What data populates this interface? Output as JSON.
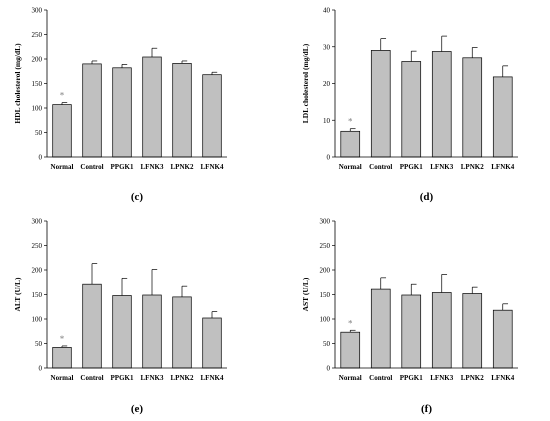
{
  "chart_data": [
    {
      "type": "bar",
      "panel": "(c)",
      "ylabel": "HDL cholesterol (mg/dL)",
      "xlabel": "",
      "ylim": [
        0,
        300
      ],
      "yticks": [
        0,
        50,
        100,
        150,
        200,
        250,
        300
      ],
      "categories": [
        "Normal",
        "Control",
        "PPGK1",
        "LFNK3",
        "LPNK2",
        "LFNK4"
      ],
      "values": [
        107,
        190,
        182,
        204,
        191,
        168
      ],
      "errors": [
        4,
        6,
        7,
        18,
        5,
        5
      ],
      "annotations": [
        {
          "category": "Normal",
          "text": "*"
        }
      ],
      "bar_color": "#c0c0c0",
      "grid": false
    },
    {
      "type": "bar",
      "panel": "(d)",
      "ylabel": "LDL cholesterol (mg/dL)",
      "xlabel": "",
      "ylim": [
        0,
        40
      ],
      "yticks": [
        0,
        10,
        20,
        30,
        40
      ],
      "categories": [
        "Normal",
        "Control",
        "PPGK1",
        "LFNK3",
        "LPNK2",
        "LFNK4"
      ],
      "values": [
        7,
        29,
        26,
        28.7,
        27,
        21.8
      ],
      "errors": [
        0.7,
        3.2,
        2.8,
        4.2,
        2.8,
        3
      ],
      "annotations": [
        {
          "category": "Normal",
          "text": "*"
        }
      ],
      "bar_color": "#c0c0c0",
      "grid": false
    },
    {
      "type": "bar",
      "panel": "(e)",
      "ylabel": "ALT (U/L)",
      "xlabel": "",
      "ylim": [
        0,
        300
      ],
      "yticks": [
        0,
        50,
        100,
        150,
        200,
        250,
        300
      ],
      "categories": [
        "Normal",
        "Control",
        "PPGK1",
        "LFNK3",
        "LPNK2",
        "LFNK4"
      ],
      "values": [
        42,
        171,
        148,
        149,
        145,
        102
      ],
      "errors": [
        3,
        42,
        35,
        52,
        22,
        13
      ],
      "annotations": [
        {
          "category": "Normal",
          "text": "*"
        }
      ],
      "bar_color": "#c0c0c0",
      "grid": false
    },
    {
      "type": "bar",
      "panel": "(f)",
      "ylabel": "AST (U/L)",
      "xlabel": "",
      "ylim": [
        0,
        300
      ],
      "yticks": [
        0,
        50,
        100,
        150,
        200,
        250,
        300
      ],
      "categories": [
        "Normal",
        "Control",
        "PPGK1",
        "LFNK3",
        "LPNK2",
        "LFNK4"
      ],
      "values": [
        73,
        161,
        149,
        154,
        152,
        118
      ],
      "errors": [
        4,
        23,
        22,
        37,
        13,
        13
      ],
      "annotations": [
        {
          "category": "Normal",
          "text": "*"
        }
      ],
      "bar_color": "#c0c0c0",
      "grid": false
    }
  ]
}
